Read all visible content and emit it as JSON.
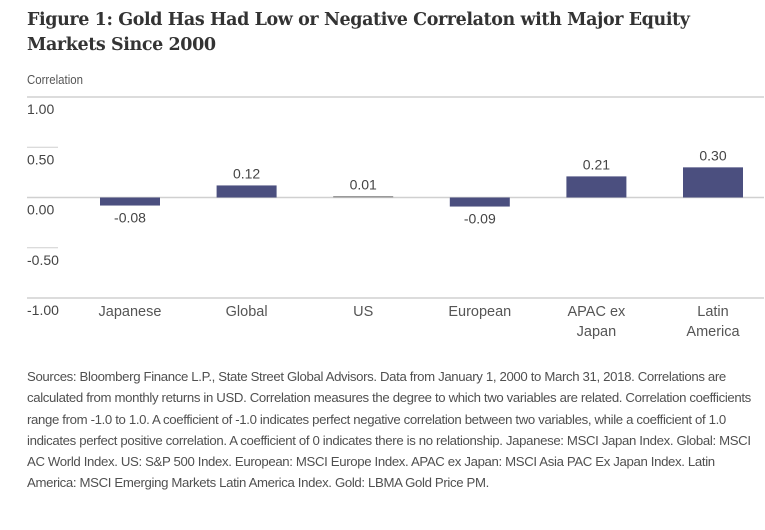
{
  "chart_data": {
    "type": "bar",
    "title": "Figure 1: Gold Has Had Low or Negative Correlaton with Major Equity Markets Since 2000",
    "ylabel": "Correlation",
    "xlabel": "",
    "ylim": [
      -1.0,
      1.0
    ],
    "yticks": [
      "1.00",
      "0.50",
      "0.00",
      "-0.50",
      "-1.00"
    ],
    "ytick_values": [
      1.0,
      0.5,
      0.0,
      -0.5,
      -1.0
    ],
    "categories": [
      [
        "Japanese"
      ],
      [
        "Global"
      ],
      [
        "US"
      ],
      [
        "European"
      ],
      [
        "APAC ex",
        "Japan"
      ],
      [
        "Latin",
        "America"
      ]
    ],
    "values": [
      -0.08,
      0.12,
      0.01,
      -0.09,
      0.21,
      0.3
    ],
    "value_labels": [
      "-0.08",
      "0.12",
      "0.01",
      "-0.09",
      "0.21",
      "0.30"
    ],
    "bar_color": "#4b4f7f",
    "small_bar_color": "#9a9a9a",
    "grid": true,
    "legend": "none"
  },
  "notes": "Sources: Bloomberg Finance L.P., State Street Global Advisors. Data from January 1, 2000 to March 31, 2018. Correlations are calculated from monthly returns in USD. Correlation measures the degree to which two variables are related. Correlation coefficients range from -1.0 to 1.0. A coefficient of -1.0 indicates perfect negative correlation between two variables, while a coefficient of 1.0 indicates perfect positive correlation. A coefficient of 0 indicates there is no relationship. Japanese: MSCI Japan Index. Global: MSCI AC World Index. US: S&P 500 Index. European: MSCI Europe Index. APAC ex Japan: MSCI Asia PAC Ex Japan Index. Latin America: MSCI Emerging Markets Latin America Index. Gold: LBMA Gold Price PM."
}
